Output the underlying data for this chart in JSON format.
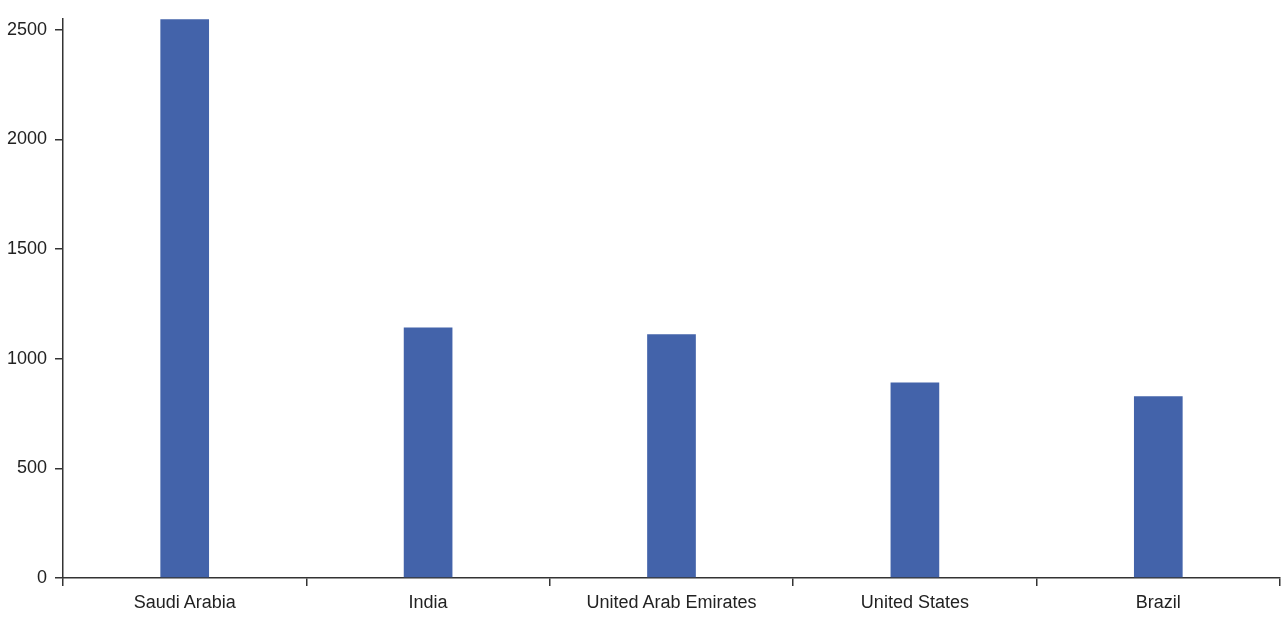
{
  "chart_data": {
    "type": "bar",
    "categories": [
      "Saudi Arabia",
      "India",
      "United Arab Emirates",
      "United States",
      "Brazil"
    ],
    "values": [
      2548,
      1142,
      1111,
      891,
      829
    ],
    "color": "#4363aa",
    "ylim": [
      0,
      2550
    ],
    "yticks": [
      0,
      500,
      1000,
      1500,
      2000,
      2500
    ],
    "grid": false,
    "legend": false
  }
}
